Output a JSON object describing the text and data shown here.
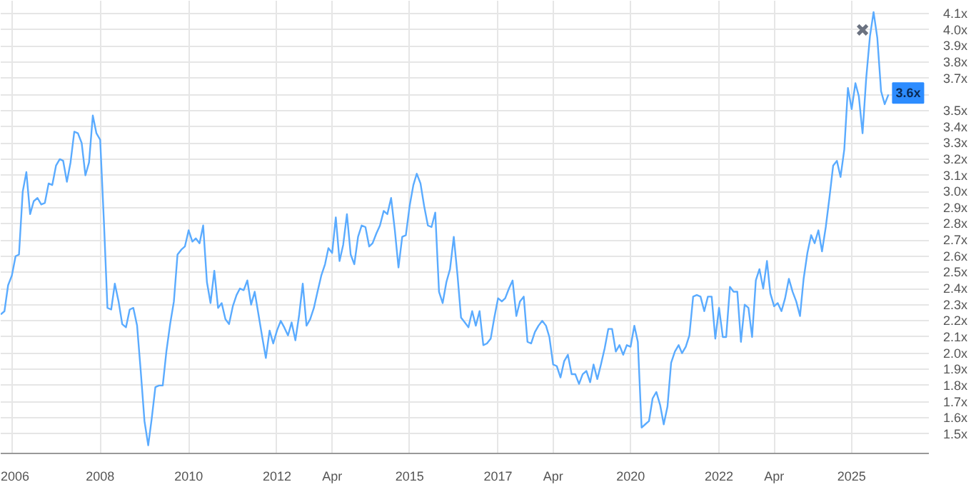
{
  "chart_data": {
    "type": "line",
    "x": [
      "2005-10",
      "2005-11",
      "2005-12",
      "2006-01",
      "2006-02",
      "2006-03",
      "2006-04",
      "2006-05",
      "2006-06",
      "2006-07",
      "2006-08",
      "2006-09",
      "2006-10",
      "2006-11",
      "2006-12",
      "2007-01",
      "2007-02",
      "2007-03",
      "2007-04",
      "2007-05",
      "2007-06",
      "2007-07",
      "2007-08",
      "2007-09",
      "2007-10",
      "2007-11",
      "2007-12",
      "2008-01",
      "2008-02",
      "2008-03",
      "2008-04",
      "2008-05",
      "2008-06",
      "2008-07",
      "2008-08",
      "2008-09",
      "2008-10",
      "2008-11",
      "2008-12",
      "2009-01",
      "2009-02",
      "2009-03",
      "2009-04",
      "2009-05",
      "2009-06",
      "2009-07",
      "2009-08",
      "2009-09",
      "2009-10",
      "2009-11",
      "2009-12",
      "2010-01",
      "2010-02",
      "2010-03",
      "2010-04",
      "2010-05",
      "2010-06",
      "2010-07",
      "2010-08",
      "2010-09",
      "2010-10",
      "2010-11",
      "2010-12",
      "2011-01",
      "2011-02",
      "2011-03",
      "2011-04",
      "2011-05",
      "2011-06",
      "2011-07",
      "2011-08",
      "2011-09",
      "2011-10",
      "2011-11",
      "2011-12",
      "2012-01",
      "2012-02",
      "2012-03",
      "2012-04",
      "2012-05",
      "2012-06",
      "2012-07",
      "2012-08",
      "2012-09",
      "2012-10",
      "2012-11",
      "2012-12",
      "2013-01",
      "2013-02",
      "2013-03",
      "2013-04",
      "2013-05",
      "2013-06",
      "2013-07",
      "2013-08",
      "2013-09",
      "2013-10",
      "2013-11",
      "2013-12",
      "2014-01",
      "2014-02",
      "2014-03",
      "2014-04",
      "2014-05",
      "2014-06",
      "2014-07",
      "2014-08",
      "2014-09",
      "2014-10",
      "2014-11",
      "2014-12",
      "2015-01",
      "2015-02",
      "2015-03",
      "2015-04",
      "2015-05",
      "2015-06",
      "2015-07",
      "2015-08",
      "2015-09",
      "2015-10",
      "2015-11",
      "2015-12",
      "2016-01",
      "2016-02",
      "2016-03",
      "2016-04",
      "2016-05",
      "2016-06",
      "2016-07",
      "2016-08",
      "2016-09",
      "2016-10",
      "2016-11",
      "2016-12",
      "2017-01",
      "2017-02",
      "2017-03",
      "2017-04",
      "2017-05",
      "2017-06",
      "2017-07",
      "2017-08",
      "2017-09",
      "2017-10",
      "2017-11",
      "2017-12",
      "2018-01",
      "2018-02",
      "2018-03",
      "2018-04",
      "2018-05",
      "2018-06",
      "2018-07",
      "2018-08",
      "2018-09",
      "2018-10",
      "2018-11",
      "2018-12",
      "2019-01",
      "2019-02",
      "2019-03",
      "2019-04",
      "2019-05",
      "2019-06",
      "2019-07",
      "2019-08",
      "2019-09",
      "2019-10",
      "2019-11",
      "2019-12",
      "2020-01",
      "2020-02",
      "2020-03",
      "2020-04",
      "2020-05",
      "2020-06",
      "2020-07",
      "2020-08",
      "2020-09",
      "2020-10",
      "2020-11",
      "2020-12",
      "2021-01",
      "2021-02",
      "2021-03",
      "2021-04",
      "2021-05",
      "2021-06",
      "2021-07",
      "2021-08",
      "2021-09",
      "2021-10",
      "2021-11",
      "2021-12",
      "2022-01",
      "2022-02",
      "2022-03",
      "2022-04",
      "2022-05",
      "2022-06",
      "2022-07",
      "2022-08",
      "2022-09",
      "2022-10",
      "2022-11",
      "2022-12",
      "2023-01",
      "2023-02",
      "2023-03",
      "2023-04",
      "2023-05",
      "2023-06",
      "2023-07",
      "2023-08",
      "2023-09",
      "2023-10",
      "2023-11",
      "2023-12",
      "2024-01",
      "2024-02",
      "2024-03",
      "2024-04",
      "2024-05",
      "2024-06",
      "2024-07",
      "2024-08",
      "2024-09",
      "2024-10",
      "2024-11",
      "2024-12",
      "2025-01",
      "2025-02",
      "2025-03",
      "2025-04",
      "2025-05",
      "2025-06",
      "2025-07",
      "2025-08",
      "2025-09",
      "2025-10",
      "2025-11"
    ],
    "series": [
      {
        "color": "#5aabff",
        "values": [
          2.24,
          2.26,
          2.42,
          2.48,
          2.6,
          2.61,
          3.0,
          3.12,
          2.86,
          2.94,
          2.96,
          2.92,
          2.93,
          3.05,
          3.04,
          3.16,
          3.2,
          3.19,
          3.06,
          3.18,
          3.37,
          3.36,
          3.3,
          3.1,
          3.18,
          3.47,
          3.36,
          3.32,
          2.81,
          2.28,
          2.27,
          2.43,
          2.32,
          2.18,
          2.16,
          2.27,
          2.28,
          2.17,
          1.89,
          1.58,
          1.43,
          1.59,
          1.79,
          1.8,
          1.8,
          2.01,
          2.18,
          2.32,
          2.61,
          2.64,
          2.66,
          2.76,
          2.69,
          2.71,
          2.68,
          2.79,
          2.44,
          2.31,
          2.51,
          2.28,
          2.31,
          2.21,
          2.18,
          2.29,
          2.36,
          2.4,
          2.39,
          2.45,
          2.3,
          2.38,
          2.24,
          2.1,
          1.97,
          2.14,
          2.06,
          2.14,
          2.2,
          2.16,
          2.11,
          2.19,
          2.08,
          2.23,
          2.43,
          2.17,
          2.21,
          2.28,
          2.38,
          2.48,
          2.55,
          2.65,
          2.62,
          2.84,
          2.57,
          2.67,
          2.86,
          2.61,
          2.55,
          2.72,
          2.79,
          2.78,
          2.66,
          2.68,
          2.74,
          2.79,
          2.88,
          2.86,
          2.96,
          2.76,
          2.53,
          2.72,
          2.73,
          2.91,
          3.04,
          3.11,
          3.05,
          2.91,
          2.79,
          2.78,
          2.87,
          2.38,
          2.31,
          2.44,
          2.52,
          2.72,
          2.48,
          2.22,
          2.19,
          2.16,
          2.26,
          2.17,
          2.26,
          2.05,
          2.06,
          2.09,
          2.22,
          2.34,
          2.32,
          2.34,
          2.4,
          2.45,
          2.23,
          2.32,
          2.35,
          2.07,
          2.06,
          2.13,
          2.17,
          2.2,
          2.17,
          2.1,
          1.93,
          1.92,
          1.85,
          1.95,
          1.99,
          1.87,
          1.87,
          1.81,
          1.87,
          1.89,
          1.82,
          1.93,
          1.84,
          1.93,
          2.03,
          2.15,
          2.15,
          2.01,
          2.05,
          1.99,
          2.05,
          2.04,
          2.17,
          2.07,
          1.54,
          1.56,
          1.58,
          1.72,
          1.76,
          1.68,
          1.56,
          1.67,
          1.94,
          2.01,
          2.05,
          2.0,
          2.04,
          2.11,
          2.35,
          2.36,
          2.35,
          2.26,
          2.35,
          2.35,
          2.09,
          2.28,
          2.1,
          2.1,
          2.41,
          2.38,
          2.38,
          2.07,
          2.3,
          2.28,
          2.1,
          2.45,
          2.52,
          2.4,
          2.57,
          2.37,
          2.29,
          2.31,
          2.26,
          2.34,
          2.46,
          2.38,
          2.32,
          2.23,
          2.46,
          2.62,
          2.73,
          2.68,
          2.76,
          2.63,
          2.78,
          2.96,
          3.16,
          3.19,
          3.09,
          3.26,
          3.64,
          3.51,
          3.67,
          3.59,
          3.36,
          3.7,
          3.96,
          4.11,
          3.95,
          3.62,
          3.54,
          3.6
        ]
      },
      {
        "type": "scatter",
        "marker": "cross",
        "color": "#6b7280",
        "x": [
          "2025-04"
        ],
        "values": [
          4.0
        ]
      }
    ],
    "xlim": [
      "2005-10",
      "2026-10"
    ],
    "xticks": [
      {
        "value": "2006",
        "label": "2006"
      },
      {
        "value": "2008",
        "label": "2008"
      },
      {
        "value": "2010",
        "label": "2010"
      },
      {
        "value": "2012",
        "label": "2012"
      },
      {
        "value": "2013-04",
        "label": "Apr"
      },
      {
        "value": "2015",
        "label": "2015"
      },
      {
        "value": "2017",
        "label": "2017"
      },
      {
        "value": "2018-04",
        "label": "Apr"
      },
      {
        "value": "2020",
        "label": "2020"
      },
      {
        "value": "2022",
        "label": "2022"
      },
      {
        "value": "2023-04",
        "label": "Apr"
      },
      {
        "value": "2025",
        "label": "2025"
      }
    ],
    "ylim": [
      1.38,
      4.18
    ],
    "yticks": [
      {
        "value": 1.5,
        "label": "1.5x"
      },
      {
        "value": 1.6,
        "label": "1.6x"
      },
      {
        "value": 1.7,
        "label": "1.7x"
      },
      {
        "value": 1.8,
        "label": "1.8x"
      },
      {
        "value": 1.9,
        "label": "1.9x"
      },
      {
        "value": 2.0,
        "label": "2.0x"
      },
      {
        "value": 2.1,
        "label": "2.1x"
      },
      {
        "value": 2.2,
        "label": "2.2x"
      },
      {
        "value": 2.3,
        "label": "2.3x"
      },
      {
        "value": 2.4,
        "label": "2.4x"
      },
      {
        "value": 2.5,
        "label": "2.5x"
      },
      {
        "value": 2.6,
        "label": "2.6x"
      },
      {
        "value": 2.7,
        "label": "2.7x"
      },
      {
        "value": 2.8,
        "label": "2.8x"
      },
      {
        "value": 2.9,
        "label": "2.9x"
      },
      {
        "value": 3.0,
        "label": "3.0x"
      },
      {
        "value": 3.1,
        "label": "3.1x"
      },
      {
        "value": 3.2,
        "label": "3.2x"
      },
      {
        "value": 3.3,
        "label": "3.3x"
      },
      {
        "value": 3.4,
        "label": "3.4x"
      },
      {
        "value": 3.5,
        "label": "3.5x"
      },
      {
        "value": 3.6,
        "label": null
      },
      {
        "value": 3.7,
        "label": "3.7x"
      },
      {
        "value": 3.8,
        "label": "3.8x"
      },
      {
        "value": 3.9,
        "label": "3.9x"
      },
      {
        "value": 4.0,
        "label": "4.0x"
      },
      {
        "value": 4.1,
        "label": "4.1x"
      }
    ],
    "annotations": [
      {
        "text": "3.6x",
        "x": "2025-11",
        "y": 3.6
      }
    ],
    "grid": true
  }
}
